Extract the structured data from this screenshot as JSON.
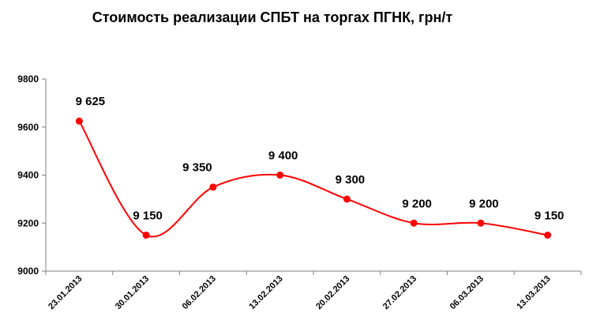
{
  "chart_data": {
    "type": "line",
    "title": "Стоимость реализации СПБТ на торгах ПГНК, грн/т",
    "categories": [
      "23.01.2013",
      "30.01.2013",
      "06.02.2013",
      "13.02.2013",
      "20.02.2013",
      "27.02.2013",
      "06.03.2013",
      "13.03.2013"
    ],
    "values": [
      9625,
      9150,
      9350,
      9400,
      9300,
      9200,
      9200,
      9150
    ],
    "value_labels": [
      "9 625",
      "9 150",
      "9 350",
      "9 400",
      "9 300",
      "9 200",
      "9 200",
      "9 150"
    ],
    "ylim": [
      9000,
      9800
    ],
    "yticks": [
      9000,
      9200,
      9400,
      9600,
      9800
    ],
    "grid": false,
    "smooth": true,
    "line_color": "#ff0000",
    "marker_color": "#ff0000",
    "axis_color": "#808080"
  }
}
